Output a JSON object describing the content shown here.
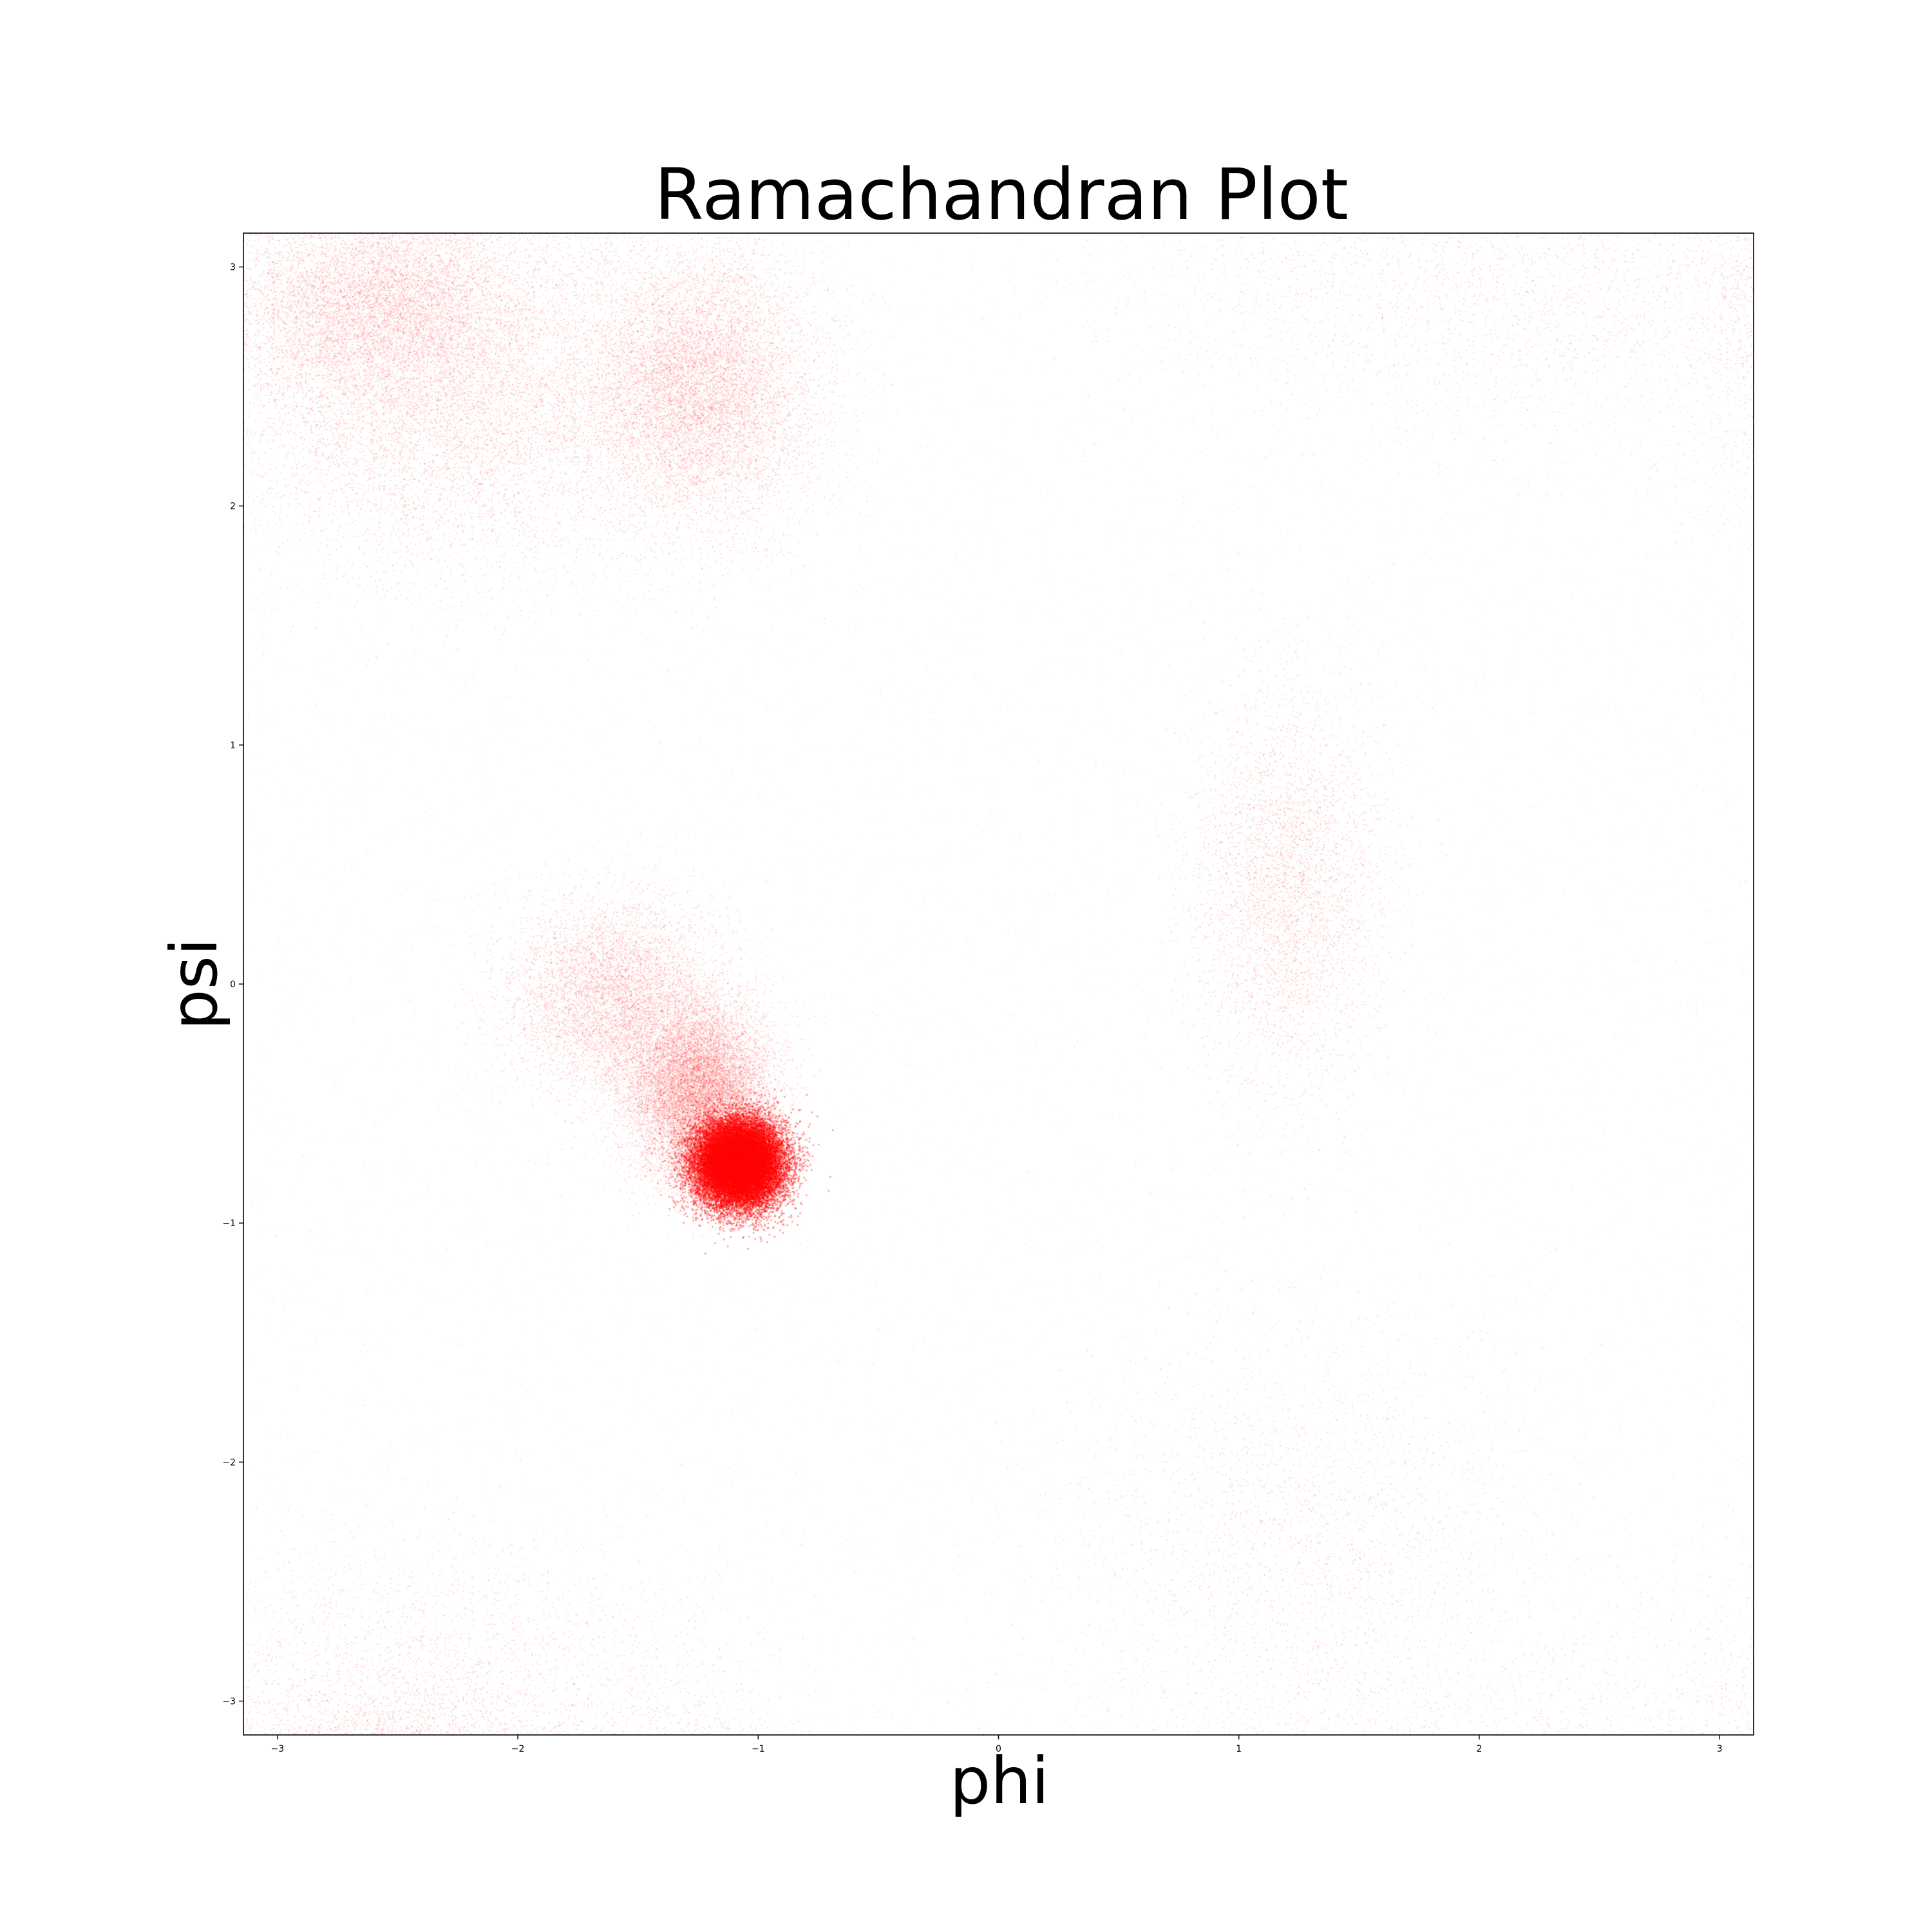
{
  "chart_data": {
    "type": "scatter",
    "title": "Ramachandran Plot",
    "xlabel": "phi",
    "ylabel": "psi",
    "xlim": [
      -3.14159,
      3.14159
    ],
    "ylim": [
      -3.14159,
      3.14159
    ],
    "xticks": [
      -3,
      -2,
      -1,
      0,
      1,
      2,
      3
    ],
    "yticks": [
      -3,
      -2,
      -1,
      0,
      1,
      2,
      3
    ],
    "xtick_labels": [
      "−3",
      "−2",
      "−1",
      "0",
      "1",
      "2",
      "3"
    ],
    "ytick_labels": [
      "−3",
      "−2",
      "−1",
      "0",
      "1",
      "2",
      "3"
    ],
    "grid": false,
    "color": "#ff0000",
    "density_regions": [
      {
        "name": "right-handed alpha helix",
        "center": [
          -1.08,
          -0.75
        ],
        "spread": [
          0.09,
          0.09
        ],
        "relative_density": 1.0
      },
      {
        "name": "alpha helix tail",
        "center": [
          -1.25,
          -0.45
        ],
        "spread": [
          0.15,
          0.18
        ],
        "relative_density": 0.45
      },
      {
        "name": "bridge toward alpha",
        "center": [
          -1.6,
          -0.05
        ],
        "spread": [
          0.22,
          0.2
        ],
        "relative_density": 0.2
      },
      {
        "name": "beta sheet (polyproline)",
        "center": [
          -1.25,
          2.5
        ],
        "spread": [
          0.25,
          0.3
        ],
        "relative_density": 0.35
      },
      {
        "name": "beta sheet (extended)",
        "center": [
          -2.3,
          2.45
        ],
        "spread": [
          0.45,
          0.35
        ],
        "relative_density": 0.3
      },
      {
        "name": "beta upper edge",
        "center": [
          -2.6,
          2.85
        ],
        "spread": [
          0.3,
          0.2
        ],
        "relative_density": 0.2
      },
      {
        "name": "left-handed alpha helix",
        "center": [
          1.2,
          0.4
        ],
        "spread": [
          0.2,
          0.4
        ],
        "relative_density": 0.12
      },
      {
        "name": "lower right region",
        "center": [
          1.3,
          -2.4
        ],
        "spread": [
          0.5,
          0.5
        ],
        "relative_density": 0.05
      },
      {
        "name": "lower left wrap",
        "center": [
          -2.3,
          -2.9
        ],
        "spread": [
          0.6,
          0.3
        ],
        "relative_density": 0.06
      },
      {
        "name": "upper right wrap",
        "center": [
          2.2,
          2.9
        ],
        "spread": [
          0.8,
          0.3
        ],
        "relative_density": 0.04
      }
    ]
  }
}
